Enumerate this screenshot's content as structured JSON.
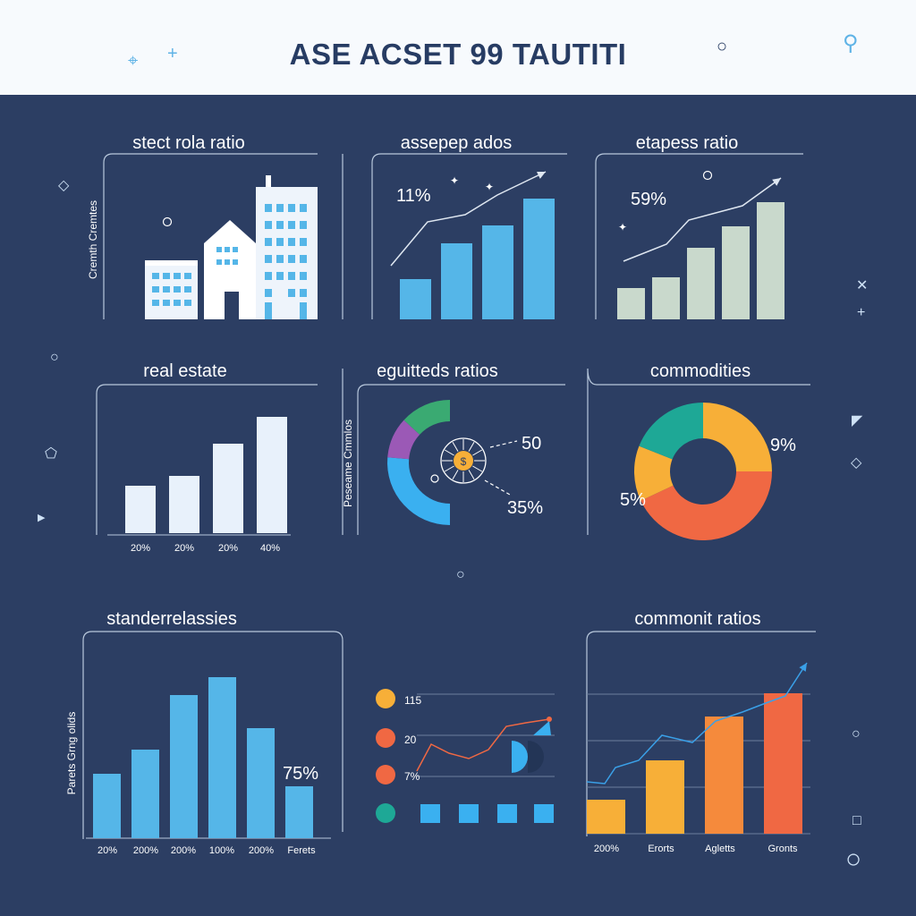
{
  "header": {
    "title": "ASE ACSET 99 TAUTITI"
  },
  "panels": {
    "p1": {
      "title": "stect rola ratio",
      "side_label": "Cremth Cremtes"
    },
    "p2": {
      "title": "assepер ados",
      "annotation": "11%"
    },
    "p3": {
      "title": "etapess ratio",
      "annotation": "59%"
    },
    "p4": {
      "title": "real estate"
    },
    "p5": {
      "title": "eguitteds ratios",
      "side_label": "Peseame Cmmlos",
      "value_top": "50",
      "value_bottom": "35%",
      "coin": "$"
    },
    "p6": {
      "title": "commodities",
      "label_right": "9%",
      "label_left": "5%"
    },
    "p7": {
      "title": "standerrelassies",
      "side_label": "Parets Grng olids"
    },
    "p8": {
      "legend": [
        "115",
        "20",
        "7%"
      ]
    },
    "p9": {
      "title": "commonit ratios"
    }
  },
  "colors": {
    "background": "#2c3e63",
    "header": "#f7fafd",
    "blue": "#55b6e8",
    "sage": "#c9d9cc",
    "pale": "#e8f1fb",
    "orange": "#f7af38",
    "coral": "#f06843",
    "teal": "#1ea896"
  },
  "chart_data": [
    {
      "type": "bar",
      "title": "assepер ados",
      "values": [
        45,
        85,
        105,
        135
      ],
      "trend": [
        40,
        90,
        112,
        165
      ]
    },
    {
      "type": "bar",
      "title": "etapess ratio",
      "values": [
        35,
        47,
        80,
        104,
        131
      ],
      "trend": [
        40,
        60,
        87,
        117,
        155
      ]
    },
    {
      "type": "bar",
      "title": "real estate",
      "categories": [
        "20%",
        "20%",
        "20%",
        "40%"
      ],
      "values": [
        53,
        64,
        100,
        130
      ]
    },
    {
      "type": "pie",
      "title": "eguitteds ratios",
      "slices": [
        {
          "value": 20,
          "color": "#3ab0f0"
        },
        {
          "value": 8,
          "color": "#9b59b6"
        },
        {
          "value": 10,
          "color": "#3aaa72"
        }
      ]
    },
    {
      "type": "pie",
      "title": "commodities",
      "labels": [
        "9%",
        "5%"
      ],
      "slices": [
        {
          "value": 25,
          "color": "#f7af38"
        },
        {
          "value": 43,
          "color": "#f06843"
        },
        {
          "value": 13,
          "color": "#f7af38"
        },
        {
          "value": 19,
          "color": "#1ea896"
        }
      ]
    },
    {
      "type": "bar",
      "title": "standerrelassies",
      "categories": [
        "20%",
        "200%",
        "200%",
        "100%",
        "200%",
        "Ferets"
      ],
      "values": [
        72,
        99,
        160,
        180,
        123,
        58
      ],
      "annotation": "75%"
    },
    {
      "type": "line",
      "legend": [
        "115",
        "20",
        "7%"
      ],
      "line_values": [
        62,
        88,
        78,
        90,
        80,
        122,
        136,
        138
      ],
      "bars": [
        1,
        1,
        1,
        1
      ]
    },
    {
      "type": "bar",
      "title": "commonit ratios",
      "categories": [
        "200%",
        "Erorts",
        "Agletts",
        "Gronts"
      ],
      "values": [
        38,
        82,
        131,
        157
      ],
      "trend": [
        60,
        63,
        90,
        108,
        110,
        128,
        150,
        160,
        186
      ]
    }
  ]
}
